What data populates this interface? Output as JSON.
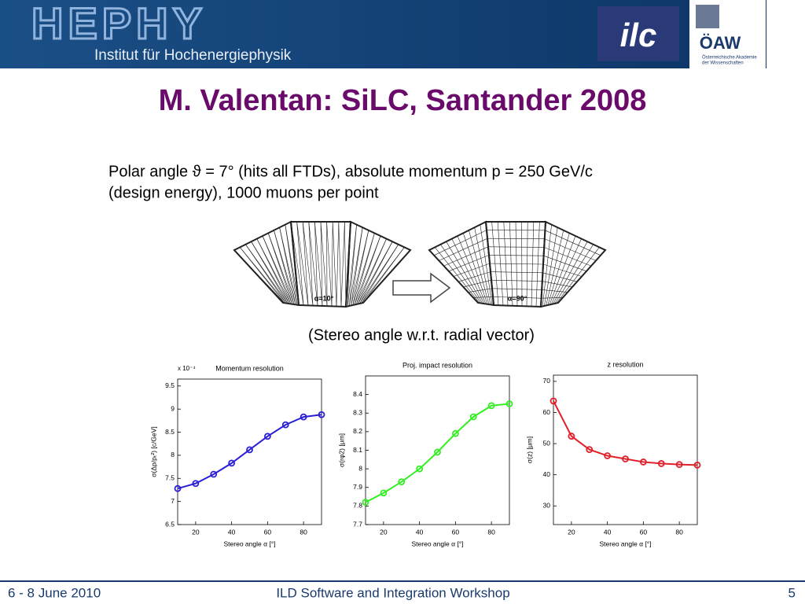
{
  "header": {
    "logo": "HEPHY",
    "institute": "Institut für Hochenergiephysik",
    "ilc_logo": "ilc",
    "oaw_logo": "ÖAW",
    "oaw_name_1": "Österreichische Akademie",
    "oaw_name_2": "der Wissenschaften"
  },
  "title": "M. Valentan: SiLC, Santander 2008",
  "body": {
    "line_1": "Polar angle ϑ = 7° (hits all FTDs), absolute momentum p = 250 GeV/c",
    "line_2": "(design energy), 1000 muons per point"
  },
  "diagram": {
    "label_left": "α=10°",
    "label_right": "α=90°",
    "caption": "(Stereo angle w.r.t. radial vector)"
  },
  "chart_data": [
    {
      "type": "line",
      "title": "Momentum resolution",
      "annotation": "x 10⁻⁴",
      "x_label": "Stereo angle α [°]",
      "y_label": "σ(Δp/pₜ²) [c/GeV]",
      "x": [
        10,
        20,
        30,
        40,
        50,
        60,
        70,
        80,
        90
      ],
      "series": [
        {
          "color": "#2a1fd6",
          "values": [
            7.28,
            7.39,
            7.59,
            7.83,
            8.12,
            8.41,
            8.66,
            8.83,
            8.88
          ]
        }
      ],
      "xlim": [
        10,
        90
      ],
      "xticks": [
        20,
        40,
        60,
        80
      ],
      "ylim": [
        6.5,
        9.65
      ],
      "yticks": [
        6.5,
        7,
        7.5,
        8,
        8.5,
        9,
        9.5
      ]
    },
    {
      "type": "line",
      "title": "Proj. impact resolution",
      "x_label": "Stereo angle α [°]",
      "y_label": "σ(rφ2) [μm]",
      "x": [
        10,
        20,
        30,
        40,
        50,
        60,
        70,
        80,
        90
      ],
      "series": [
        {
          "color": "#33ee22",
          "values": [
            7.82,
            7.87,
            7.93,
            8.0,
            8.09,
            8.19,
            8.28,
            8.34,
            8.35
          ]
        }
      ],
      "xlim": [
        10,
        90
      ],
      "xticks": [
        20,
        40,
        60,
        80
      ],
      "ylim": [
        7.7,
        8.5
      ],
      "yticks": [
        7.7,
        7.8,
        7.9,
        8,
        8.1,
        8.2,
        8.3,
        8.4
      ]
    },
    {
      "type": "line",
      "title": "z resolution",
      "x_label": "Stereo angle α [°]",
      "y_label": "σ(z) [μm]",
      "x": [
        10,
        20,
        30,
        40,
        50,
        60,
        70,
        80,
        90
      ],
      "series": [
        {
          "color": "#e0202a",
          "values": [
            63.7,
            52.4,
            48.1,
            46.1,
            45.1,
            44.1,
            43.6,
            43.3,
            43.1
          ]
        }
      ],
      "xlim": [
        10,
        90
      ],
      "xticks": [
        20,
        40,
        60,
        80
      ],
      "ylim": [
        24,
        72
      ],
      "yticks": [
        30,
        40,
        50,
        60,
        70
      ]
    }
  ],
  "footer": {
    "date": "6 - 8 June 2010",
    "event": "ILD Software and Integration Workshop",
    "page": "5"
  }
}
